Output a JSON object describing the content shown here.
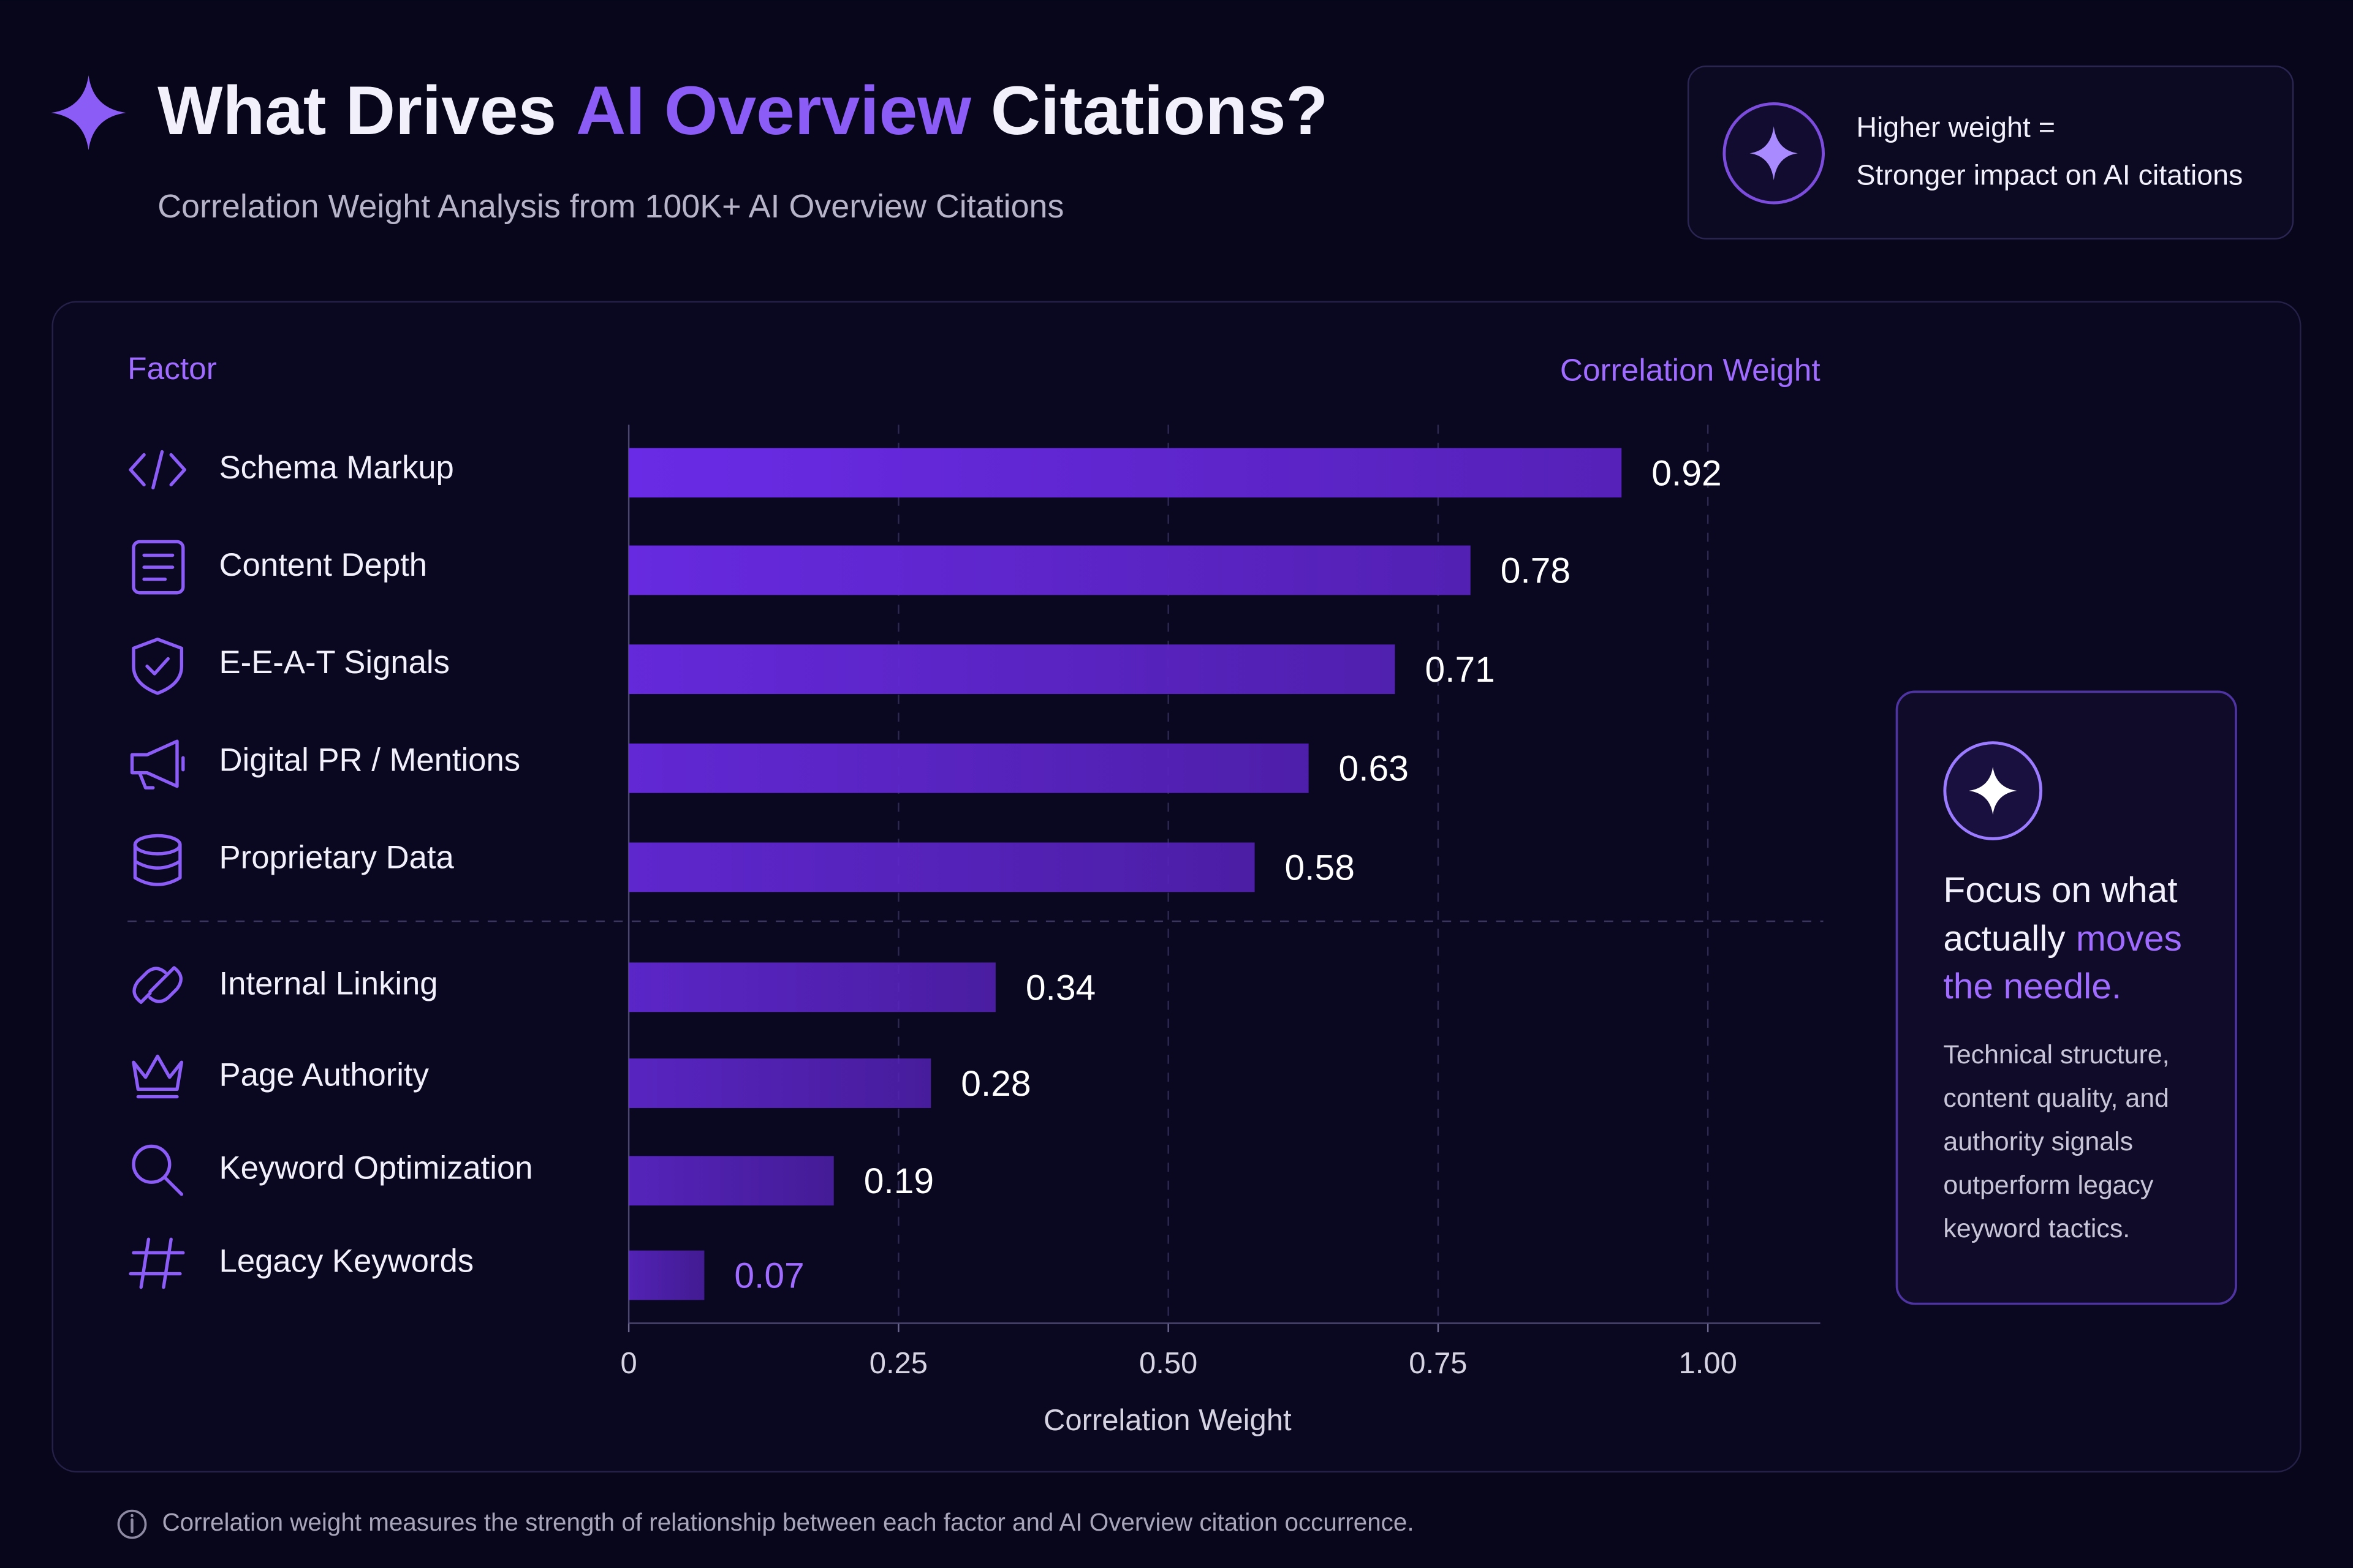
{
  "header": {
    "title": [
      "What Drives",
      "AI Overview",
      "Citations?"
    ],
    "subtitle": "Correlation Weight Analysis from 100K+ AI Overview Citations"
  },
  "legend_note": [
    "Higher weight =",
    "Stronger impact on AI citations"
  ],
  "chart_data": {
    "type": "bar",
    "orientation": "horizontal",
    "column_headers": [
      "Factor",
      "Correlation Weight"
    ],
    "x_label": "Correlation Weight",
    "categories": [
      "Schema Markup",
      "Content Depth",
      "E-E-A-T Signals",
      "Digital PR / Mentions",
      "Proprietary Data",
      "Internal Linking",
      "Page Authority",
      "Keyword Optimization",
      "Legacy Keywords"
    ],
    "values": [
      0.92,
      0.78,
      0.71,
      0.63,
      0.58,
      0.34,
      0.28,
      0.19,
      0.07
    ],
    "color": "#6529dc",
    "xlim": [
      0,
      1.1
    ],
    "xticks": [
      {
        "value": 0,
        "label": "0"
      },
      0.25,
      {
        "value": 0.5,
        "label": "0.50"
      },
      0.75,
      {
        "value": 1,
        "label": "1.00"
      }
    ],
    "grid": true
  },
  "callout": {
    "heading": [
      "Focus on what",
      "actually",
      "moves",
      "the needle."
    ],
    "body": [
      "Technical structure,",
      "content quality, and",
      "authority signals",
      "outperform legacy",
      "keyword tactics."
    ]
  },
  "footnote": "Correlation weight measures the strength of relationship between each factor and AI Overview citation occurrence."
}
